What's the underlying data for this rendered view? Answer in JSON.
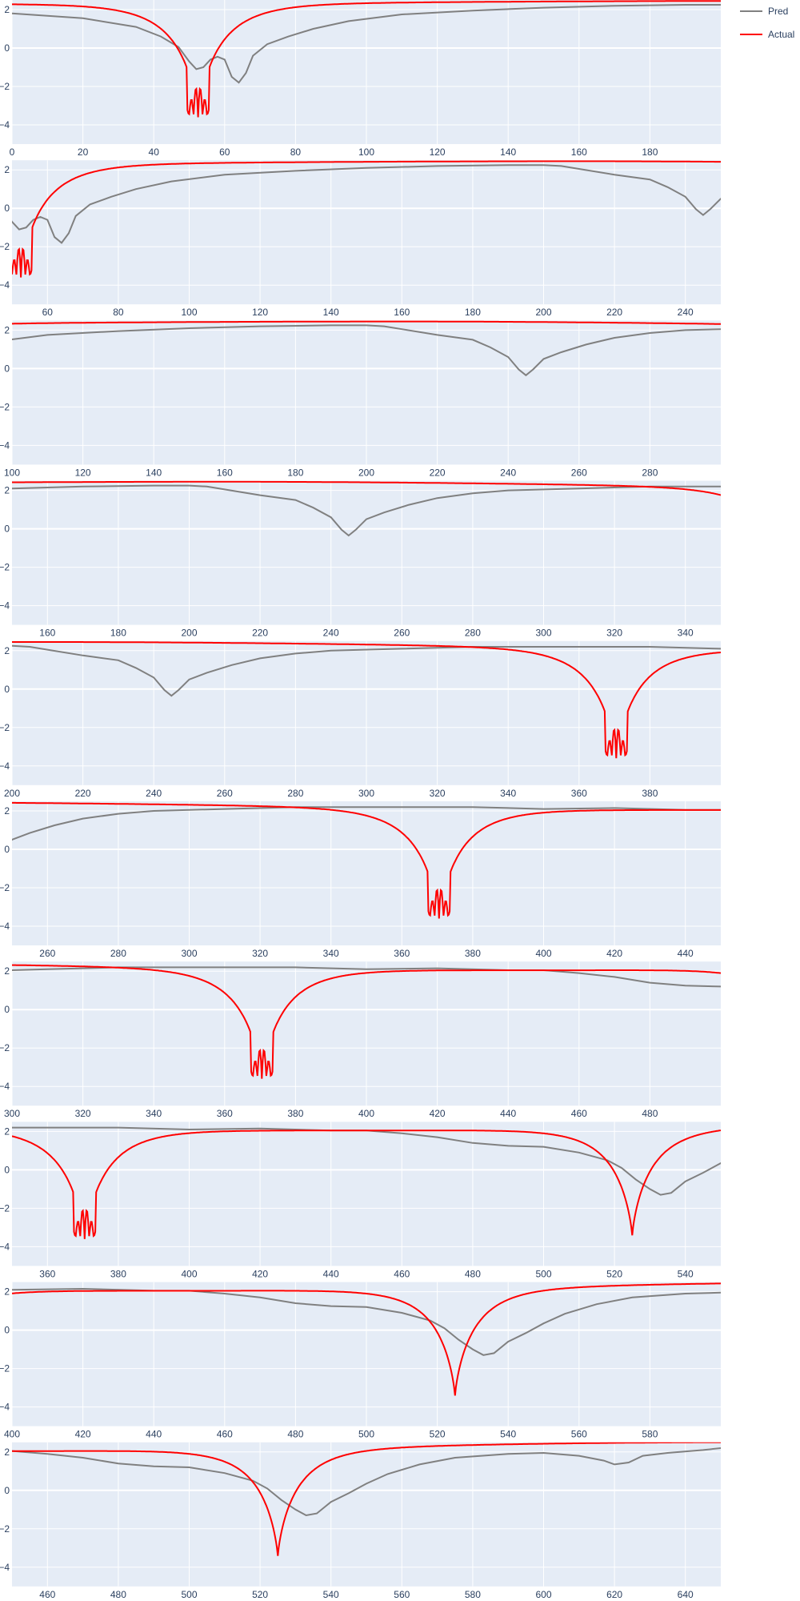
{
  "chart_data": {
    "type": "line",
    "colors": {
      "plot_bg": "#e5ecf6",
      "grid": "#ffffff",
      "pred": "#808080",
      "actual": "#ff0000",
      "text": "#2a3f5f"
    },
    "legend": {
      "placement": "top-right",
      "entries": [
        {
          "name": "Pred",
          "color": "#808080"
        },
        {
          "name": "Actual",
          "color": "#ff0000"
        }
      ]
    },
    "ylim": [
      -5,
      2.5
    ],
    "yticks": [
      2,
      0,
      -2,
      -4
    ],
    "yticklabels": [
      "2",
      "0",
      "−2",
      "−4"
    ],
    "grid": true,
    "actual_dips": [
      {
        "x": 52.5,
        "depth": 6,
        "width": 7
      },
      {
        "x": 370.5,
        "depth": 6,
        "width": 7
      },
      {
        "x": 525,
        "depth": 5.6,
        "width": 6.5
      }
    ],
    "actual_secondary": [
      {
        "x": 0,
        "value": 2.3
      },
      {
        "x": 210,
        "value": 2.45
      },
      {
        "x": 450,
        "value": 2.05
      },
      {
        "x": 650,
        "value": 2.5
      }
    ],
    "actual_sub_notches": [
      {
        "x": 51.2,
        "value": -3.6
      },
      {
        "x": 53.8,
        "value": -3.6
      },
      {
        "x": 368.6,
        "value": -3.6
      },
      {
        "x": 371,
        "value": -3.6
      },
      {
        "x": 373.6,
        "value": -3.6
      }
    ],
    "pred_points": [
      [
        0,
        1.8
      ],
      [
        20,
        1.55
      ],
      [
        35,
        1.1
      ],
      [
        42,
        0.6
      ],
      [
        47,
        0.05
      ],
      [
        50,
        -0.7
      ],
      [
        52,
        -1.1
      ],
      [
        54,
        -1.0
      ],
      [
        56,
        -0.6
      ],
      [
        58,
        -0.45
      ],
      [
        60,
        -0.6
      ],
      [
        62,
        -1.5
      ],
      [
        64,
        -1.8
      ],
      [
        66,
        -1.3
      ],
      [
        68,
        -0.4
      ],
      [
        72,
        0.2
      ],
      [
        78,
        0.6
      ],
      [
        85,
        1.0
      ],
      [
        95,
        1.4
      ],
      [
        110,
        1.75
      ],
      [
        130,
        1.95
      ],
      [
        150,
        2.1
      ],
      [
        170,
        2.2
      ],
      [
        190,
        2.25
      ],
      [
        200,
        2.25
      ],
      [
        205,
        2.2
      ],
      [
        210,
        2.05
      ],
      [
        220,
        1.75
      ],
      [
        230,
        1.5
      ],
      [
        235,
        1.1
      ],
      [
        240,
        0.6
      ],
      [
        243,
        -0.05
      ],
      [
        245,
        -0.35
      ],
      [
        247,
        -0.05
      ],
      [
        250,
        0.5
      ],
      [
        255,
        0.85
      ],
      [
        262,
        1.25
      ],
      [
        270,
        1.6
      ],
      [
        280,
        1.85
      ],
      [
        290,
        2.0
      ],
      [
        310,
        2.1
      ],
      [
        330,
        2.2
      ],
      [
        350,
        2.2
      ],
      [
        380,
        2.2
      ],
      [
        400,
        2.1
      ],
      [
        420,
        2.15
      ],
      [
        440,
        2.05
      ],
      [
        450,
        2.05
      ],
      [
        460,
        1.9
      ],
      [
        470,
        1.7
      ],
      [
        480,
        1.4
      ],
      [
        490,
        1.25
      ],
      [
        500,
        1.2
      ],
      [
        510,
        0.9
      ],
      [
        518,
        0.5
      ],
      [
        522,
        0.1
      ],
      [
        526,
        -0.5
      ],
      [
        530,
        -1.0
      ],
      [
        533,
        -1.3
      ],
      [
        536,
        -1.2
      ],
      [
        540,
        -0.6
      ],
      [
        545,
        -0.15
      ],
      [
        550,
        0.35
      ],
      [
        556,
        0.85
      ],
      [
        565,
        1.35
      ],
      [
        575,
        1.7
      ],
      [
        590,
        1.9
      ],
      [
        600,
        1.95
      ],
      [
        610,
        1.8
      ],
      [
        617,
        1.55
      ],
      [
        620,
        1.35
      ],
      [
        624,
        1.45
      ],
      [
        628,
        1.8
      ],
      [
        635,
        1.95
      ],
      [
        645,
        2.1
      ],
      [
        650,
        2.2
      ]
    ],
    "panels": [
      {
        "xlim": [
          0,
          200
        ],
        "xticks": [
          0,
          20,
          40,
          60,
          80,
          100,
          120,
          140,
          160,
          180
        ]
      },
      {
        "xlim": [
          50,
          250
        ],
        "xticks": [
          60,
          80,
          100,
          120,
          140,
          160,
          180,
          200,
          220,
          240
        ]
      },
      {
        "xlim": [
          100,
          300
        ],
        "xticks": [
          100,
          120,
          140,
          160,
          180,
          200,
          220,
          240,
          260,
          280
        ]
      },
      {
        "xlim": [
          150,
          350
        ],
        "xticks": [
          160,
          180,
          200,
          220,
          240,
          260,
          280,
          300,
          320,
          340
        ]
      },
      {
        "xlim": [
          200,
          400
        ],
        "xticks": [
          200,
          220,
          240,
          260,
          280,
          300,
          320,
          340,
          360,
          380
        ]
      },
      {
        "xlim": [
          250,
          450
        ],
        "xticks": [
          260,
          280,
          300,
          320,
          340,
          360,
          380,
          400,
          420,
          440
        ]
      },
      {
        "xlim": [
          300,
          500
        ],
        "xticks": [
          300,
          320,
          340,
          360,
          380,
          400,
          420,
          440,
          460,
          480
        ]
      },
      {
        "xlim": [
          350,
          550
        ],
        "xticks": [
          360,
          380,
          400,
          420,
          440,
          460,
          480,
          500,
          520,
          540
        ]
      },
      {
        "xlim": [
          400,
          600
        ],
        "xticks": [
          400,
          420,
          440,
          460,
          480,
          500,
          520,
          540,
          560,
          580
        ]
      },
      {
        "xlim": [
          450,
          650
        ],
        "xticks": [
          460,
          480,
          500,
          520,
          540,
          560,
          580,
          600,
          620,
          640
        ]
      }
    ]
  }
}
